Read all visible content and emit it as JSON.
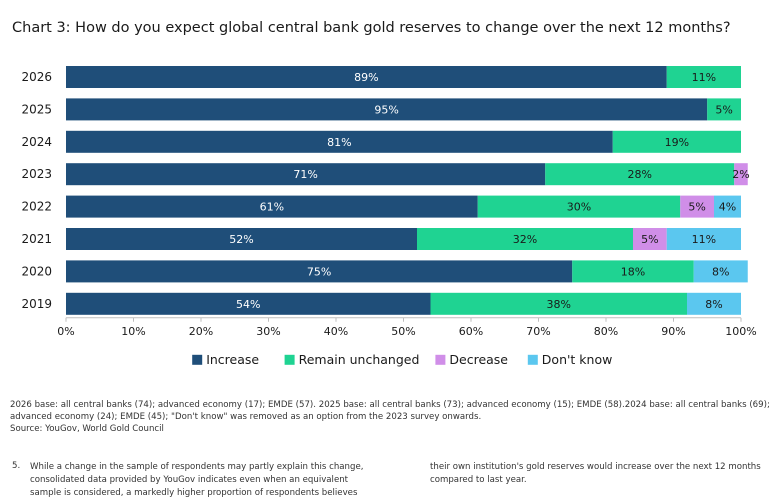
{
  "chart_data": {
    "type": "bar",
    "orientation": "horizontal",
    "stacked": true,
    "title": "Chart 3: How do you expect global central bank gold reserves to change over the next 12 months?",
    "categories": [
      "2026",
      "2025",
      "2024",
      "2023",
      "2022",
      "2021",
      "2020",
      "2019"
    ],
    "series": [
      {
        "name": "Increase",
        "color": "#1f4e79",
        "label_color": "#ffffff",
        "values": [
          89,
          95,
          81,
          71,
          61,
          52,
          75,
          54
        ],
        "labels": [
          "89%",
          "95%",
          "81%",
          "71%",
          "61%",
          "52%",
          "75%",
          "54%"
        ]
      },
      {
        "name": "Remain unchanged",
        "color": "#1fd392",
        "label_color": "#1a1a1a",
        "values": [
          11,
          5,
          19,
          28,
          30,
          32,
          18,
          38
        ],
        "labels": [
          "11%",
          "5%",
          "19%",
          "28%",
          "30%",
          "32%",
          "18%",
          "38%"
        ]
      },
      {
        "name": "Decrease",
        "color": "#d08ee8",
        "label_color": "#1a1a1a",
        "values": [
          0,
          0,
          0,
          2,
          5,
          5,
          0,
          0
        ],
        "labels": [
          "",
          "",
          "",
          "2%",
          "5%",
          "5%",
          "",
          ""
        ]
      },
      {
        "name": "Don't know",
        "color": "#5bc7ef",
        "label_color": "#1a1a1a",
        "values": [
          0,
          0,
          0,
          0,
          4,
          11,
          8,
          8
        ],
        "labels": [
          "",
          "",
          "",
          "",
          "4%",
          "11%",
          "8%",
          "8%"
        ]
      }
    ],
    "xlim": [
      0,
      100
    ],
    "x_ticks": [
      "0%",
      "10%",
      "20%",
      "30%",
      "40%",
      "50%",
      "60%",
      "70%",
      "80%",
      "90%",
      "100%"
    ],
    "grid": false,
    "legend": "bottom"
  },
  "notes": {
    "base_line": "2026 base: all central banks (74); advanced economy (17); EMDE (57). 2025 base: all central banks (73); advanced economy (15); EMDE (58).2024 base: all central banks (69); advanced economy (24); EMDE (45); \"Don't know\" was removed as an option from the 2023 survey onwards.",
    "source": "Source: YouGov, World Gold Council"
  },
  "footnote": {
    "number": "5.",
    "left_text": "While a change in the sample of respondents may partly explain this change, consolidated data provided by YouGov indicates even when an equivalent sample is considered, a markedly higher proportion of respondents believes",
    "right_text": "their own institution's gold reserves would increase over the next 12 months compared to last year."
  }
}
